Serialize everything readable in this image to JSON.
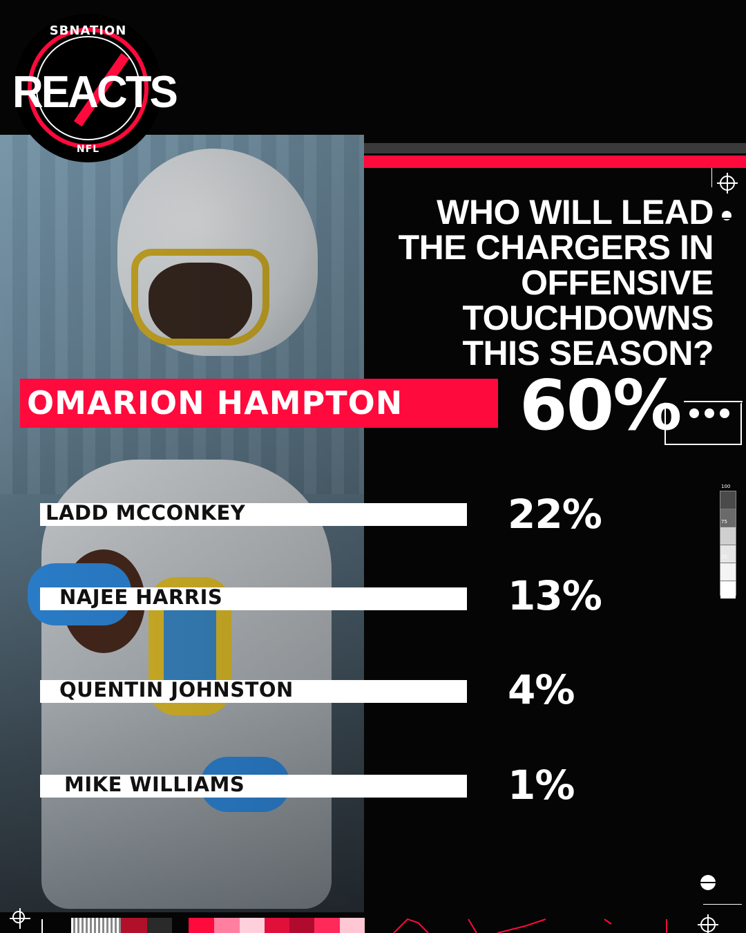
{
  "brand": {
    "top": "SBNATION",
    "main": "REACTS",
    "league": "NFL",
    "accent": "#ff0a3c"
  },
  "question": {
    "lines": [
      "WHO WILL LEAD",
      "THE CHARGERS IN",
      "OFFENSIVE TOUCHDOWNS",
      "THIS SEASON?"
    ]
  },
  "results": {
    "winner": {
      "label": "OMARION HAMPTON",
      "pct": "60%"
    },
    "others": [
      {
        "label": "LADD MCCONKEY",
        "pct": "22%"
      },
      {
        "label": "NAJEE HARRIS",
        "pct": "13%"
      },
      {
        "label": "QUENTIN JOHNSTON",
        "pct": "4%"
      },
      {
        "label": "MIKE WILLIAMS",
        "pct": "1%"
      }
    ]
  },
  "scale_labels": [
    "100",
    "75",
    "25"
  ],
  "chart_data": {
    "type": "bar",
    "title": "WHO WILL LEAD THE CHARGERS IN OFFENSIVE TOUCHDOWNS THIS SEASON?",
    "categories": [
      "OMARION HAMPTON",
      "LADD MCCONKEY",
      "NAJEE HARRIS",
      "QUENTIN JOHNSTON",
      "MIKE WILLIAMS"
    ],
    "values": [
      60,
      22,
      13,
      4,
      1
    ],
    "unit": "%"
  },
  "icons": [
    "crosshair-icon",
    "dot-icon"
  ]
}
